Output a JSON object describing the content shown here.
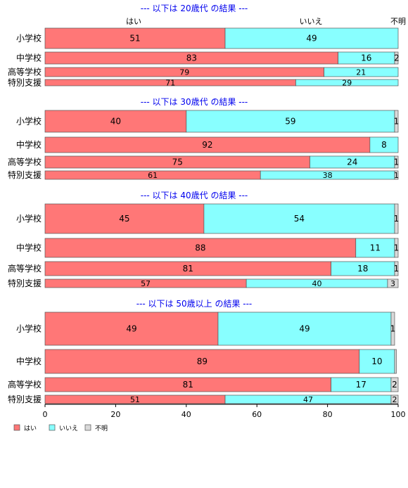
{
  "chart_data": {
    "type": "bar",
    "orientation": "horizontal-stacked-100",
    "categories": [
      "小学校",
      "中学校",
      "高等学校",
      "特別支援"
    ],
    "series_names": [
      "はい",
      "いいえ",
      "不明"
    ],
    "colors": {
      "yes": "#ff7777",
      "no": "#88ffff",
      "unknown": "#d9d9d9",
      "title": "#0000ee"
    },
    "top_labels": [
      "はい",
      "いいえ",
      "不明"
    ],
    "panels": [
      {
        "title": "--- 以下は 20歳代 の結果 ---",
        "values": [
          [
            51,
            49,
            0
          ],
          [
            83,
            16,
            2
          ],
          [
            79,
            21,
            0
          ],
          [
            71,
            29,
            0
          ]
        ],
        "labels": [
          [
            "51",
            "49",
            ""
          ],
          [
            "83",
            "16",
            "2"
          ],
          [
            "79",
            "21",
            ""
          ],
          [
            "71",
            "29",
            ""
          ]
        ]
      },
      {
        "title": "--- 以下は 30歳代 の結果 ---",
        "values": [
          [
            40,
            59,
            1
          ],
          [
            92,
            8,
            0
          ],
          [
            75,
            24,
            1
          ],
          [
            61,
            38,
            1
          ]
        ],
        "labels": [
          [
            "40",
            "59",
            "1"
          ],
          [
            "92",
            "8",
            ""
          ],
          [
            "75",
            "24",
            "1"
          ],
          [
            "61",
            "38",
            "1"
          ]
        ]
      },
      {
        "title": "--- 以下は 40歳代 の結果 ---",
        "values": [
          [
            45,
            54,
            1
          ],
          [
            88,
            11,
            1
          ],
          [
            81,
            18,
            1
          ],
          [
            57,
            40,
            3
          ]
        ],
        "labels": [
          [
            "45",
            "54",
            "1"
          ],
          [
            "88",
            "11",
            "1"
          ],
          [
            "81",
            "18",
            "1"
          ],
          [
            "57",
            "40",
            "3"
          ]
        ]
      },
      {
        "title": "--- 以下は 50歳以上 の結果 ---",
        "values": [
          [
            49,
            49,
            1
          ],
          [
            89,
            10,
            0.5
          ],
          [
            81,
            17,
            2
          ],
          [
            51,
            47,
            2
          ]
        ],
        "labels": [
          [
            "49",
            "49",
            "1"
          ],
          [
            "89",
            "10",
            ""
          ],
          [
            "81",
            "17",
            "2"
          ],
          [
            "51",
            "47",
            "2"
          ]
        ]
      }
    ],
    "xlim": [
      0,
      100
    ],
    "xticks": [
      "0",
      "20",
      "40",
      "60",
      "80",
      "100"
    ],
    "legend_position": "bottom-left",
    "legend": [
      "はい",
      "いいえ",
      "不明"
    ]
  }
}
